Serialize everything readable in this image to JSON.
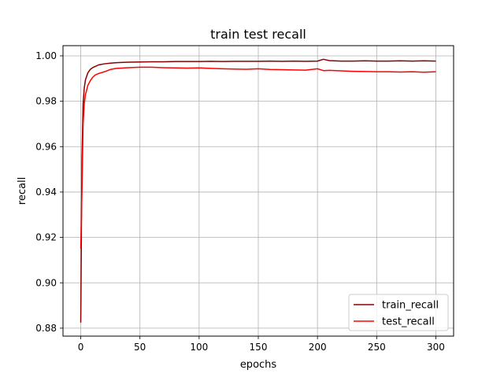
{
  "chart_data": {
    "type": "line",
    "title": "train test recall",
    "xlabel": "epochs",
    "ylabel": "recall",
    "xlim": [
      -15,
      315
    ],
    "ylim": [
      0.8765,
      1.0045
    ],
    "xticks": [
      0,
      50,
      100,
      150,
      200,
      250,
      300
    ],
    "xtick_labels": [
      "0",
      "50",
      "100",
      "150",
      "200",
      "250",
      "300"
    ],
    "yticks": [
      0.88,
      0.9,
      0.92,
      0.94,
      0.96,
      0.98,
      1.0
    ],
    "ytick_labels": [
      "0.88",
      "0.90",
      "0.92",
      "0.94",
      "0.96",
      "0.98",
      "1.00"
    ],
    "grid": true,
    "legend_position": "lower-right",
    "x": [
      0,
      1,
      2,
      3,
      4,
      5,
      6,
      8,
      10,
      12,
      15,
      20,
      25,
      30,
      40,
      50,
      60,
      70,
      80,
      90,
      100,
      110,
      120,
      130,
      140,
      150,
      160,
      170,
      180,
      190,
      200,
      205,
      210,
      220,
      230,
      240,
      250,
      260,
      270,
      280,
      290,
      300
    ],
    "series": [
      {
        "name": "train_recall",
        "color": "#8b0000",
        "values": [
          0.8825,
          0.955,
          0.979,
          0.986,
          0.9895,
          0.991,
          0.9925,
          0.994,
          0.9948,
          0.9953,
          0.996,
          0.9965,
          0.9968,
          0.997,
          0.9972,
          0.9973,
          0.9974,
          0.9974,
          0.9975,
          0.9975,
          0.9975,
          0.9976,
          0.9975,
          0.9976,
          0.9976,
          0.9976,
          0.9977,
          0.9976,
          0.9977,
          0.9976,
          0.9977,
          0.9985,
          0.9979,
          0.9977,
          0.9977,
          0.9978,
          0.9977,
          0.9977,
          0.9978,
          0.9977,
          0.9978,
          0.9977
        ]
      },
      {
        "name": "test_recall",
        "color": "#ff0000",
        "values": [
          0.915,
          0.94,
          0.97,
          0.979,
          0.983,
          0.985,
          0.987,
          0.989,
          0.9905,
          0.9915,
          0.9922,
          0.993,
          0.994,
          0.9945,
          0.9948,
          0.995,
          0.995,
          0.9948,
          0.9947,
          0.9946,
          0.9947,
          0.9945,
          0.9943,
          0.9942,
          0.9941,
          0.9943,
          0.994,
          0.9939,
          0.9938,
          0.9937,
          0.9943,
          0.9935,
          0.9936,
          0.9934,
          0.9932,
          0.9931,
          0.993,
          0.993,
          0.9929,
          0.993,
          0.9928,
          0.993
        ]
      }
    ]
  }
}
